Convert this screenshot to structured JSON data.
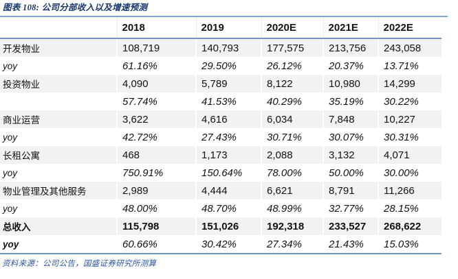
{
  "title": "图表 108:  公司分部收入以及增速预测",
  "source": "资料来源：公司公告，国盛证券研究所测算",
  "table": {
    "headers": [
      "",
      "2018",
      "2019",
      "2020E",
      "2021E",
      "2022E"
    ],
    "rows": [
      {
        "label": "开发物业",
        "indent": 0,
        "labelStyle": "normal",
        "valueStyle": "normal",
        "shaded": true,
        "values": [
          "108,719",
          "140,793",
          "177,575",
          "213,756",
          "243,058"
        ]
      },
      {
        "label": "yoy",
        "indent": 0,
        "labelStyle": "italic",
        "valueStyle": "italic",
        "shaded": false,
        "values": [
          "61.16%",
          "29.50%",
          "26.12%",
          "20.37%",
          "13.71%"
        ]
      },
      {
        "label": "投资物业",
        "indent": 0,
        "labelStyle": "normal",
        "valueStyle": "normal",
        "shaded": true,
        "values": [
          "4,090",
          "5,789",
          "8,122",
          "10,980",
          "14,299"
        ]
      },
      {
        "label": "",
        "indent": 0,
        "labelStyle": "italic",
        "valueStyle": "italic",
        "shaded": false,
        "values": [
          "57.74%",
          "41.53%",
          "40.29%",
          "35.19%",
          "30.22%"
        ]
      },
      {
        "label": "商业运营",
        "indent": 1,
        "labelStyle": "normal",
        "valueStyle": "normal",
        "shaded": true,
        "values": [
          "3,622",
          "4,616",
          "6,034",
          "7,848",
          "10,227"
        ]
      },
      {
        "label": "yoy",
        "indent": 0,
        "labelStyle": "italic",
        "valueStyle": "italic",
        "shaded": false,
        "values": [
          "42.72%",
          "27.43%",
          "30.71%",
          "30.07%",
          "30.31%"
        ]
      },
      {
        "label": "长租公寓",
        "indent": 1,
        "labelStyle": "normal",
        "valueStyle": "normal",
        "shaded": true,
        "values": [
          "468",
          "1,173",
          "2,088",
          "3,132",
          "4,071"
        ]
      },
      {
        "label": "yoy",
        "indent": 0,
        "labelStyle": "italic",
        "valueStyle": "italic",
        "shaded": false,
        "values": [
          "750.91%",
          "150.64%",
          "78.00%",
          "50.00%",
          "30.00%"
        ]
      },
      {
        "label": "物业管理及其他服务",
        "indent": 0,
        "labelStyle": "normal",
        "valueStyle": "normal",
        "shaded": true,
        "values": [
          "2,989",
          "4,444",
          "6,621",
          "8,791",
          "11,266"
        ]
      },
      {
        "label": "yoy",
        "indent": 0,
        "labelStyle": "italic",
        "valueStyle": "italic",
        "shaded": false,
        "values": [
          "48.00%",
          "48.70%",
          "48.99%",
          "32.77%",
          "28.15%"
        ]
      },
      {
        "label": "总收入",
        "indent": 2,
        "labelStyle": "bold",
        "valueStyle": "bold",
        "shaded": true,
        "values": [
          "115,798",
          "151,026",
          "192,318",
          "233,527",
          "268,622"
        ]
      },
      {
        "label": "yoy",
        "indent": 0,
        "labelStyle": "bold-italic",
        "valueStyle": "italic",
        "shaded": false,
        "values": [
          "60.66%",
          "30.42%",
          "27.34%",
          "21.43%",
          "15.03%"
        ]
      }
    ]
  }
}
